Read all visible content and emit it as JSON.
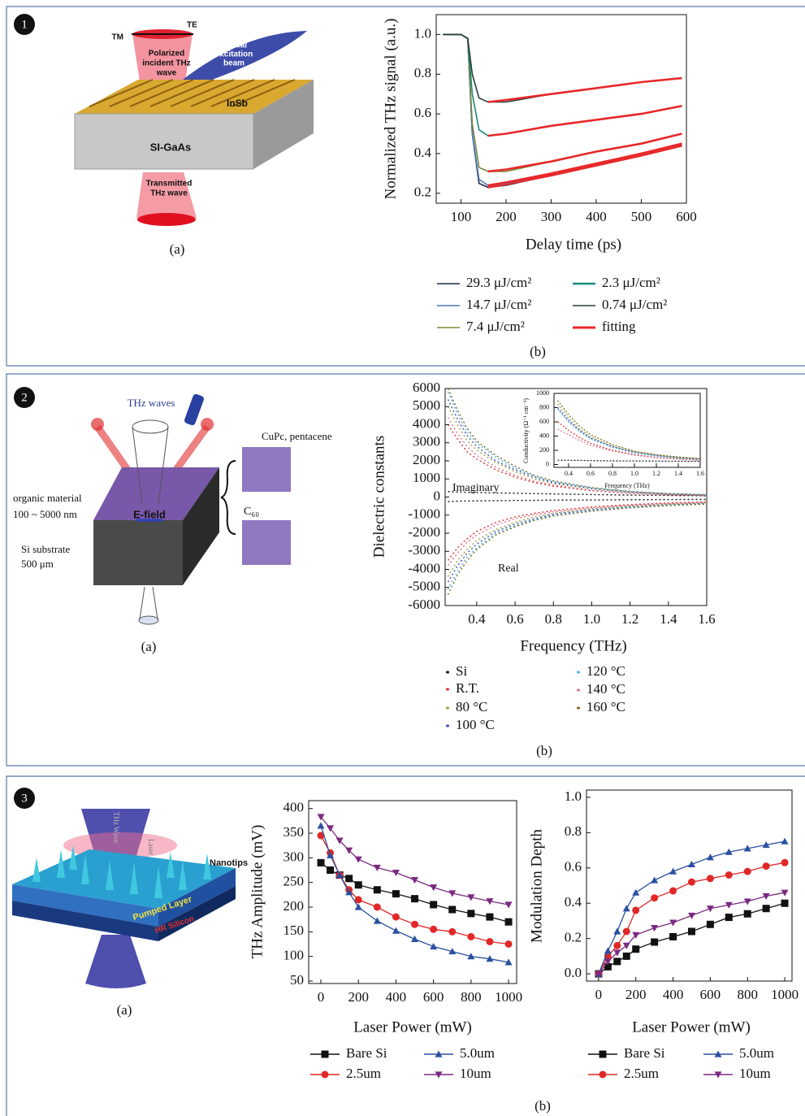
{
  "panels": [
    {
      "number": "1",
      "schematic": {
        "tm": "TM",
        "te": "TE",
        "incident": [
          "Polarized",
          "incident THz",
          "wave"
        ],
        "optical": [
          "optical",
          "excitation",
          "beam"
        ],
        "insb": "InSb",
        "gaas": "SI-GaAs",
        "transmitted": [
          "Transmitted",
          "THz wave"
        ]
      },
      "a": "(a)",
      "b": "(b)"
    },
    {
      "number": "2",
      "schematic": {
        "thz": "THz waves",
        "cupc": "CuPc, pentacene",
        "organic": [
          "organic material",
          "100 ~ 5000 nm"
        ],
        "efield": "E-field",
        "c60": "C₆₀",
        "si": [
          "Si substrate",
          "500 μm"
        ]
      },
      "a": "(a)",
      "b": "(b)"
    },
    {
      "number": "3",
      "schematic": {
        "thz": "THz Wave",
        "laser": "Laser",
        "nanotips": "Nanotips",
        "pumped": "Pumped Layer",
        "hr": "HR Silicon"
      },
      "a": "(a)",
      "b": "(b)"
    }
  ],
  "chart_data": [
    {
      "type": "line",
      "xlabel": "Delay time (ps)",
      "ylabel": "Normalized THz signal (a.u.)",
      "x": [
        60,
        80,
        100,
        115,
        125,
        140,
        160,
        200,
        300,
        400,
        500,
        590
      ],
      "xlim": [
        45,
        600
      ],
      "ylim": [
        0.15,
        1.1
      ],
      "xticks": [
        100,
        200,
        300,
        400,
        500,
        600
      ],
      "yticks": [
        0.2,
        0.4,
        0.6,
        0.8,
        {
          "value": 1,
          "label": "1.0"
        }
      ],
      "fit_name": "fitting",
      "fit_color": "#e8282a",
      "series": [
        {
          "name": "29.3 μJ/cm²",
          "color": "#1c2848",
          "values": [
            1,
            1,
            1,
            0.98,
            0.5,
            0.25,
            0.23,
            0.24,
            0.29,
            0.34,
            0.39,
            0.44
          ],
          "fit": [
            null,
            null,
            null,
            null,
            null,
            null,
            0.23,
            0.245,
            0.29,
            0.34,
            0.39,
            0.44
          ]
        },
        {
          "name": "14.7 μJ/cm²",
          "color": "#4a78b8",
          "values": [
            1,
            1,
            1,
            0.98,
            0.5,
            0.27,
            0.24,
            0.25,
            0.3,
            0.35,
            0.4,
            0.45
          ],
          "fit": [
            null,
            null,
            null,
            null,
            null,
            null,
            0.24,
            0.255,
            0.3,
            0.35,
            0.4,
            0.45
          ]
        },
        {
          "name": "7.4 μJ/cm²",
          "color": "#7a8a3a",
          "values": [
            1,
            1,
            1,
            0.98,
            0.55,
            0.33,
            0.31,
            0.31,
            0.36,
            0.41,
            0.45,
            0.5
          ],
          "fit": [
            null,
            null,
            null,
            null,
            null,
            null,
            0.31,
            0.32,
            0.36,
            0.41,
            0.45,
            0.5
          ]
        },
        {
          "name": "2.3 μJ/cm²",
          "color": "#1a8a7a",
          "values": [
            1,
            1,
            1,
            0.98,
            0.7,
            0.52,
            0.49,
            0.5,
            0.54,
            0.57,
            0.6,
            0.64
          ],
          "fit": [
            null,
            null,
            null,
            null,
            null,
            null,
            0.49,
            0.5,
            0.54,
            0.57,
            0.6,
            0.64
          ]
        },
        {
          "name": "0.74 μJ/cm²",
          "color": "#2a3a3a",
          "values": [
            1,
            1,
            1,
            0.98,
            0.8,
            0.68,
            0.66,
            0.66,
            0.7,
            0.73,
            0.76,
            0.78
          ],
          "fit": [
            null,
            null,
            null,
            null,
            null,
            null,
            0.66,
            0.67,
            0.7,
            0.73,
            0.76,
            0.78
          ]
        }
      ]
    },
    {
      "type": "line",
      "xlabel": "Frequency (THz)",
      "ylabel": "Dielectric constants",
      "imag_label": "Imaginary",
      "real_label": "Real",
      "x": [
        0.25,
        0.3,
        0.35,
        0.4,
        0.5,
        0.6,
        0.7,
        0.8,
        1.0,
        1.2,
        1.4,
        1.6
      ],
      "xlim": [
        0.235,
        1.6
      ],
      "ylim": [
        -6000,
        6000
      ],
      "xticks": [
        0.4,
        0.6,
        0.8,
        {
          "value": 1,
          "label": "1.0"
        },
        1.2,
        1.4,
        1.6
      ],
      "yticks": [
        -6000,
        -5000,
        -4000,
        -3000,
        -2000,
        -1000,
        0,
        1000,
        2000,
        3000,
        4000,
        5000,
        6000
      ],
      "series": [
        {
          "name": "Si",
          "color": "#111111",
          "values": [
            300,
            280,
            260,
            250,
            230,
            210,
            190,
            170,
            140,
            110,
            90,
            70
          ],
          "real": [
            -250,
            -230,
            -220,
            -210,
            -200,
            -190,
            -180,
            -170,
            -160,
            -150,
            -140,
            -130
          ]
        },
        {
          "name": "R.T.",
          "color": "#e03030",
          "values": [
            4000,
            3200,
            2500,
            2100,
            1500,
            1100,
            800,
            600,
            350,
            200,
            120,
            80
          ],
          "real": [
            -3500,
            -2800,
            -2300,
            -1900,
            -1400,
            -1100,
            -900,
            -750,
            -550,
            -420,
            -330,
            -270
          ]
        },
        {
          "name": "80 °C",
          "color": "#9aa040",
          "values": [
            5000,
            4000,
            3100,
            2600,
            1900,
            1400,
            1000,
            750,
            450,
            260,
            160,
            100
          ],
          "real": [
            -4400,
            -3500,
            -2900,
            -2400,
            -1800,
            -1400,
            -1100,
            -900,
            -650,
            -500,
            -400,
            -330
          ]
        },
        {
          "name": "100 °C",
          "color": "#4050c0",
          "values": [
            5400,
            4300,
            3400,
            2800,
            2000,
            1500,
            1100,
            800,
            480,
            280,
            170,
            110
          ],
          "real": [
            -4700,
            -3800,
            -3100,
            -2600,
            -1900,
            -1500,
            -1200,
            -950,
            -700,
            -540,
            -430,
            -350
          ]
        },
        {
          "name": "120 °C",
          "color": "#50b0e0",
          "values": [
            5800,
            4600,
            3600,
            3000,
            2200,
            1600,
            1150,
            850,
            500,
            300,
            180,
            120
          ],
          "real": [
            -5100,
            -4100,
            -3300,
            -2800,
            -2000,
            -1600,
            -1250,
            -1000,
            -750,
            -570,
            -450,
            -370
          ]
        },
        {
          "name": "140 °C",
          "color": "#e07090",
          "values": [
            4400,
            3500,
            2800,
            2300,
            1650,
            1200,
            880,
            660,
            380,
            220,
            130,
            90
          ],
          "real": [
            -3800,
            -3100,
            -2500,
            -2100,
            -1550,
            -1200,
            -980,
            -820,
            -600,
            -460,
            -360,
            -300
          ]
        },
        {
          "name": "160 °C",
          "color": "#7a6a20",
          "values": [
            6000,
            4800,
            3800,
            3100,
            2300,
            1700,
            1200,
            900,
            520,
            310,
            190,
            130
          ],
          "real": [
            -5400,
            -4300,
            -3500,
            -2900,
            -2100,
            -1650,
            -1300,
            -1050,
            -780,
            -600,
            -470,
            -390
          ]
        }
      ],
      "inset": {
        "xlabel": "Frequency (THz)",
        "ylabel": "Conductivity (Ω⁻¹ cm⁻¹)",
        "x": [
          0.3,
          0.4,
          0.5,
          0.6,
          0.8,
          1.0,
          1.2,
          1.4,
          1.6
        ],
        "xlim": [
          0.267,
          1.6
        ],
        "ylim": [
          -40,
          1000
        ],
        "xticks": [
          0.4,
          0.6,
          0.8,
          {
            "value": 1,
            "label": "1.0"
          },
          1.2,
          1.4,
          1.6
        ],
        "yticks": [
          0,
          200,
          400,
          600,
          800,
          1000
        ],
        "series": [
          {
            "values": [
              60,
              60,
              58,
              55,
              52,
              50,
              48,
              46,
              45
            ]
          },
          {
            "values": [
              600,
              480,
              380,
              300,
              200,
              140,
              100,
              80,
              60
            ]
          },
          {
            "values": [
              850,
              650,
              500,
              390,
              260,
              180,
              130,
              100,
              80
            ]
          },
          {
            "values": [
              800,
              620,
              480,
              370,
              250,
              170,
              125,
              95,
              75
            ]
          },
          {
            "values": [
              780,
              600,
              460,
              360,
              240,
              165,
              120,
              90,
              70
            ]
          },
          {
            "values": [
              500,
              420,
              340,
              270,
              190,
              130,
              95,
              75,
              55
            ]
          },
          {
            "values": [
              900,
              700,
              540,
              420,
              280,
              190,
              140,
              105,
              85
            ]
          }
        ]
      }
    },
    {
      "type": "line",
      "xlabel": "Laser Power (mW)",
      "ylabel": "THz Amplitude (mV)",
      "x": [
        0,
        50,
        100,
        150,
        200,
        300,
        400,
        500,
        600,
        700,
        800,
        900,
        1000
      ],
      "xlim": [
        -65,
        1043
      ],
      "ylim": [
        45,
        416
      ],
      "xticks": [
        0,
        200,
        400,
        600,
        800,
        1000
      ],
      "yticks": [
        50,
        100,
        150,
        200,
        250,
        300,
        350,
        400
      ],
      "series": [
        {
          "name": "Bare Si",
          "color": "#111111",
          "marker": "square",
          "values": [
            290,
            275,
            265,
            258,
            245,
            235,
            227,
            217,
            205,
            195,
            187,
            180,
            170
          ]
        },
        {
          "name": "2.5um",
          "color": "#e02828",
          "marker": "circle",
          "values": [
            345,
            310,
            265,
            235,
            215,
            200,
            180,
            165,
            155,
            150,
            140,
            130,
            125
          ]
        },
        {
          "name": "5.0um",
          "color": "#2a50a0",
          "marker": "tri-up",
          "values": [
            365,
            305,
            265,
            230,
            200,
            172,
            152,
            135,
            120,
            110,
            100,
            95,
            88
          ]
        },
        {
          "name": "10um",
          "color": "#7a2a80",
          "marker": "tri-down",
          "values": [
            383,
            360,
            335,
            315,
            297,
            280,
            270,
            255,
            240,
            228,
            220,
            212,
            205
          ]
        }
      ]
    },
    {
      "type": "line",
      "xlabel": "Laser Power (mW)",
      "ylabel": "Modulation Depth",
      "x": [
        0,
        50,
        100,
        150,
        200,
        300,
        400,
        500,
        600,
        700,
        800,
        900,
        1000
      ],
      "xlim": [
        -65,
        1039
      ],
      "ylim": [
        -0.041,
        1.041
      ],
      "xticks": [
        0,
        200,
        400,
        600,
        800,
        1000
      ],
      "yticks": [
        {
          "value": 0,
          "label": "0.0"
        },
        0.2,
        0.4,
        0.6,
        0.8,
        {
          "value": 1,
          "label": "1.0"
        }
      ],
      "series": [
        {
          "name": "Bare Si",
          "color": "#111111",
          "marker": "square",
          "values": [
            0,
            0.04,
            0.07,
            0.1,
            0.14,
            0.18,
            0.21,
            0.24,
            0.28,
            0.32,
            0.34,
            0.37,
            0.4
          ]
        },
        {
          "name": "2.5um",
          "color": "#e02828",
          "marker": "circle",
          "values": [
            0,
            0.1,
            0.16,
            0.24,
            0.36,
            0.43,
            0.47,
            0.52,
            0.54,
            0.56,
            0.58,
            0.61,
            0.63
          ]
        },
        {
          "name": "5.0um",
          "color": "#2a50a0",
          "marker": "tri-up",
          "values": [
            0,
            0.13,
            0.24,
            0.37,
            0.46,
            0.53,
            0.58,
            0.62,
            0.66,
            0.69,
            0.71,
            0.73,
            0.75
          ]
        },
        {
          "name": "10um",
          "color": "#7a2a80",
          "marker": "tri-down",
          "values": [
            0,
            0.07,
            0.12,
            0.16,
            0.22,
            0.26,
            0.29,
            0.33,
            0.37,
            0.39,
            0.41,
            0.44,
            0.46
          ]
        }
      ]
    }
  ]
}
